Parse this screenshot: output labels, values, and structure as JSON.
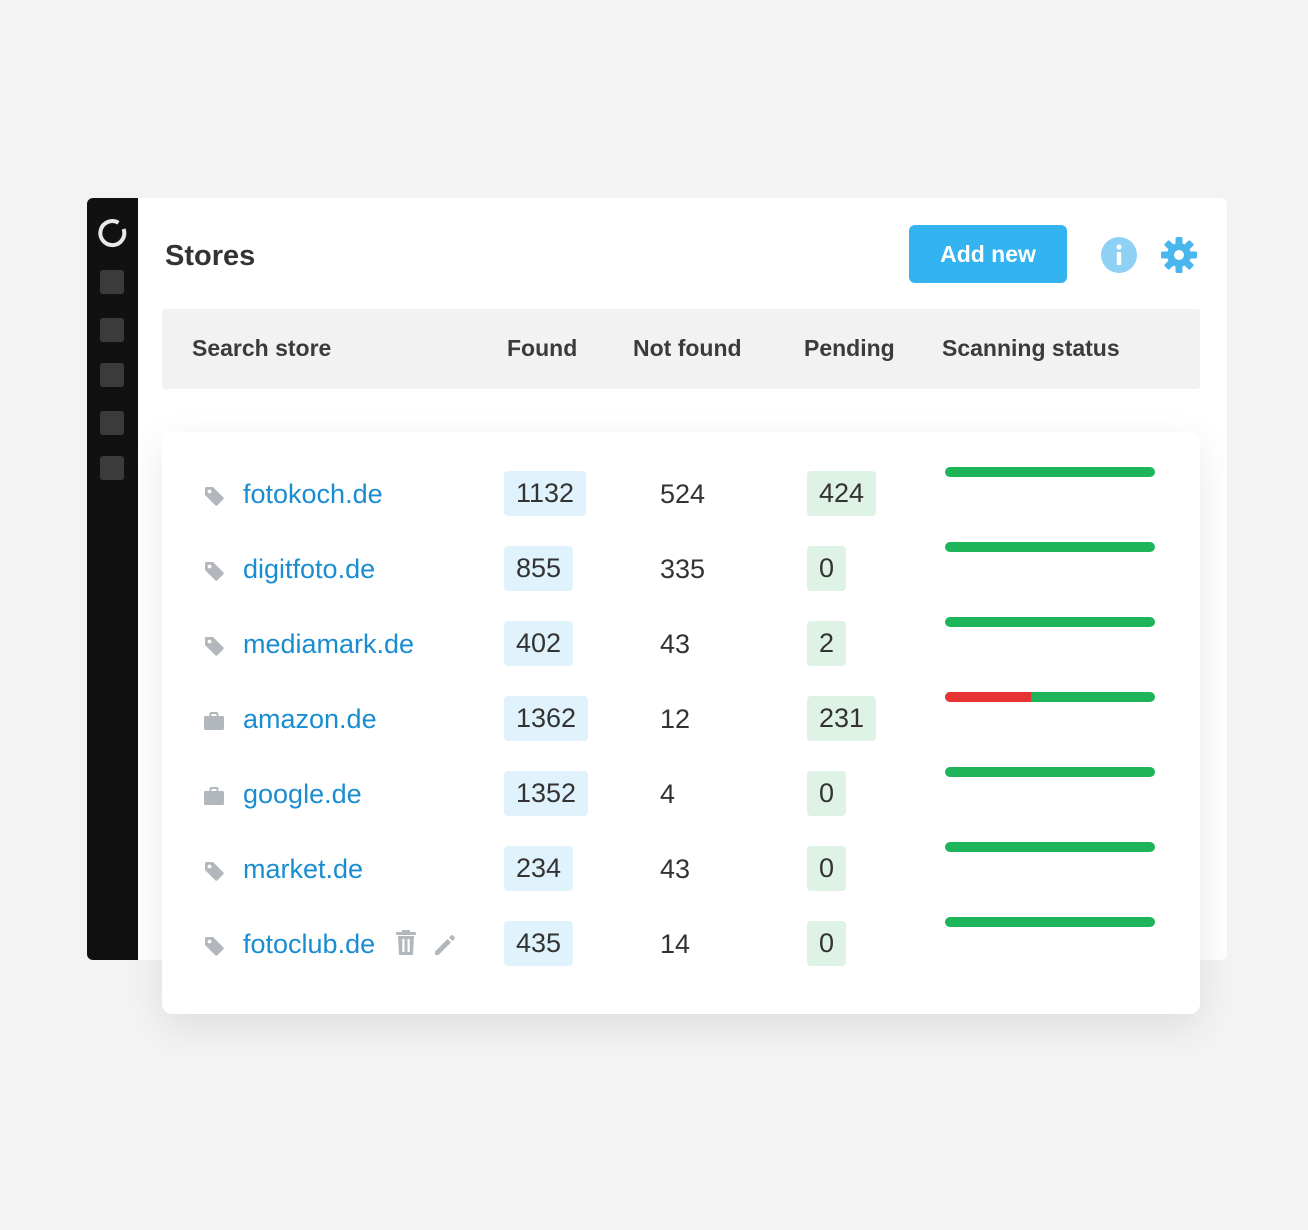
{
  "header": {
    "title": "Stores",
    "add_button_label": "Add new",
    "info_icon": "info-icon",
    "settings_icon": "gear-icon"
  },
  "sidebar": {
    "logo_icon": "spinner-logo-icon",
    "items": [
      "nav-item",
      "nav-item",
      "nav-item",
      "nav-item",
      "nav-item"
    ]
  },
  "table": {
    "columns": [
      "Search store",
      "Found",
      "Not found",
      "Pending",
      "Scanning status"
    ],
    "rows": [
      {
        "icon": "tag-icon",
        "store": "fotokoch.de",
        "found": "1132",
        "not_found": "524",
        "pending": "424",
        "status_failed_fraction": 0
      },
      {
        "icon": "tag-icon",
        "store": "digitfoto.de",
        "found": "855",
        "not_found": "335",
        "pending": "0",
        "status_failed_fraction": 0
      },
      {
        "icon": "tag-icon",
        "store": "mediamark.de",
        "found": "402",
        "not_found": "43",
        "pending": "2",
        "status_failed_fraction": 0
      },
      {
        "icon": "briefcase-icon",
        "store": "amazon.de",
        "found": "1362",
        "not_found": "12",
        "pending": "231",
        "status_failed_fraction": 0.41
      },
      {
        "icon": "briefcase-icon",
        "store": "google.de",
        "found": "1352",
        "not_found": "4",
        "pending": "0",
        "status_failed_fraction": 0
      },
      {
        "icon": "tag-icon",
        "store": "market.de",
        "found": "234",
        "not_found": "43",
        "pending": "0",
        "status_failed_fraction": 0
      },
      {
        "icon": "tag-icon",
        "store": "fotoclub.de",
        "found": "435",
        "not_found": "14",
        "pending": "0",
        "status_failed_fraction": 0,
        "actions": [
          "trash-icon",
          "pencil-icon"
        ]
      }
    ]
  },
  "colors": {
    "accent": "#34b3f1",
    "link": "#1a8dd1",
    "status_ok": "#1db45a",
    "status_fail": "#e63333",
    "found_badge": "#e0f2fc",
    "pending_badge": "#dff2e6"
  }
}
